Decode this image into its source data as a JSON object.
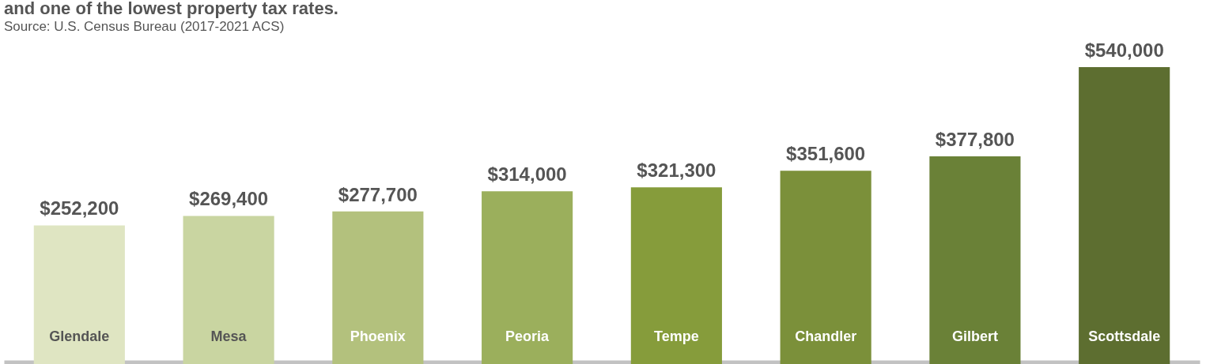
{
  "chart_data": {
    "type": "bar",
    "title": "and one of the lowest property tax rates.",
    "annotations": [
      "Source: U.S. Census Bureau (2017-2021 ACS)"
    ],
    "categories": [
      "Glendale",
      "Mesa",
      "Phoenix",
      "Peoria",
      "Tempe",
      "Chandler",
      "Gilbert",
      "Scottsdale"
    ],
    "values": [
      252200,
      269400,
      277700,
      314000,
      321300,
      351600,
      377800,
      540000
    ],
    "value_labels": [
      "$252,200",
      "$269,400",
      "$277,700",
      "$314,000",
      "$321,300",
      "$351,600",
      "$377,800",
      "$540,000"
    ],
    "colors": [
      "#dfe5c2",
      "#c9d5a1",
      "#b3c17d",
      "#9baf5c",
      "#869c3b",
      "#7b903a",
      "#6a8137",
      "#5d6e30"
    ],
    "grid": false
  }
}
